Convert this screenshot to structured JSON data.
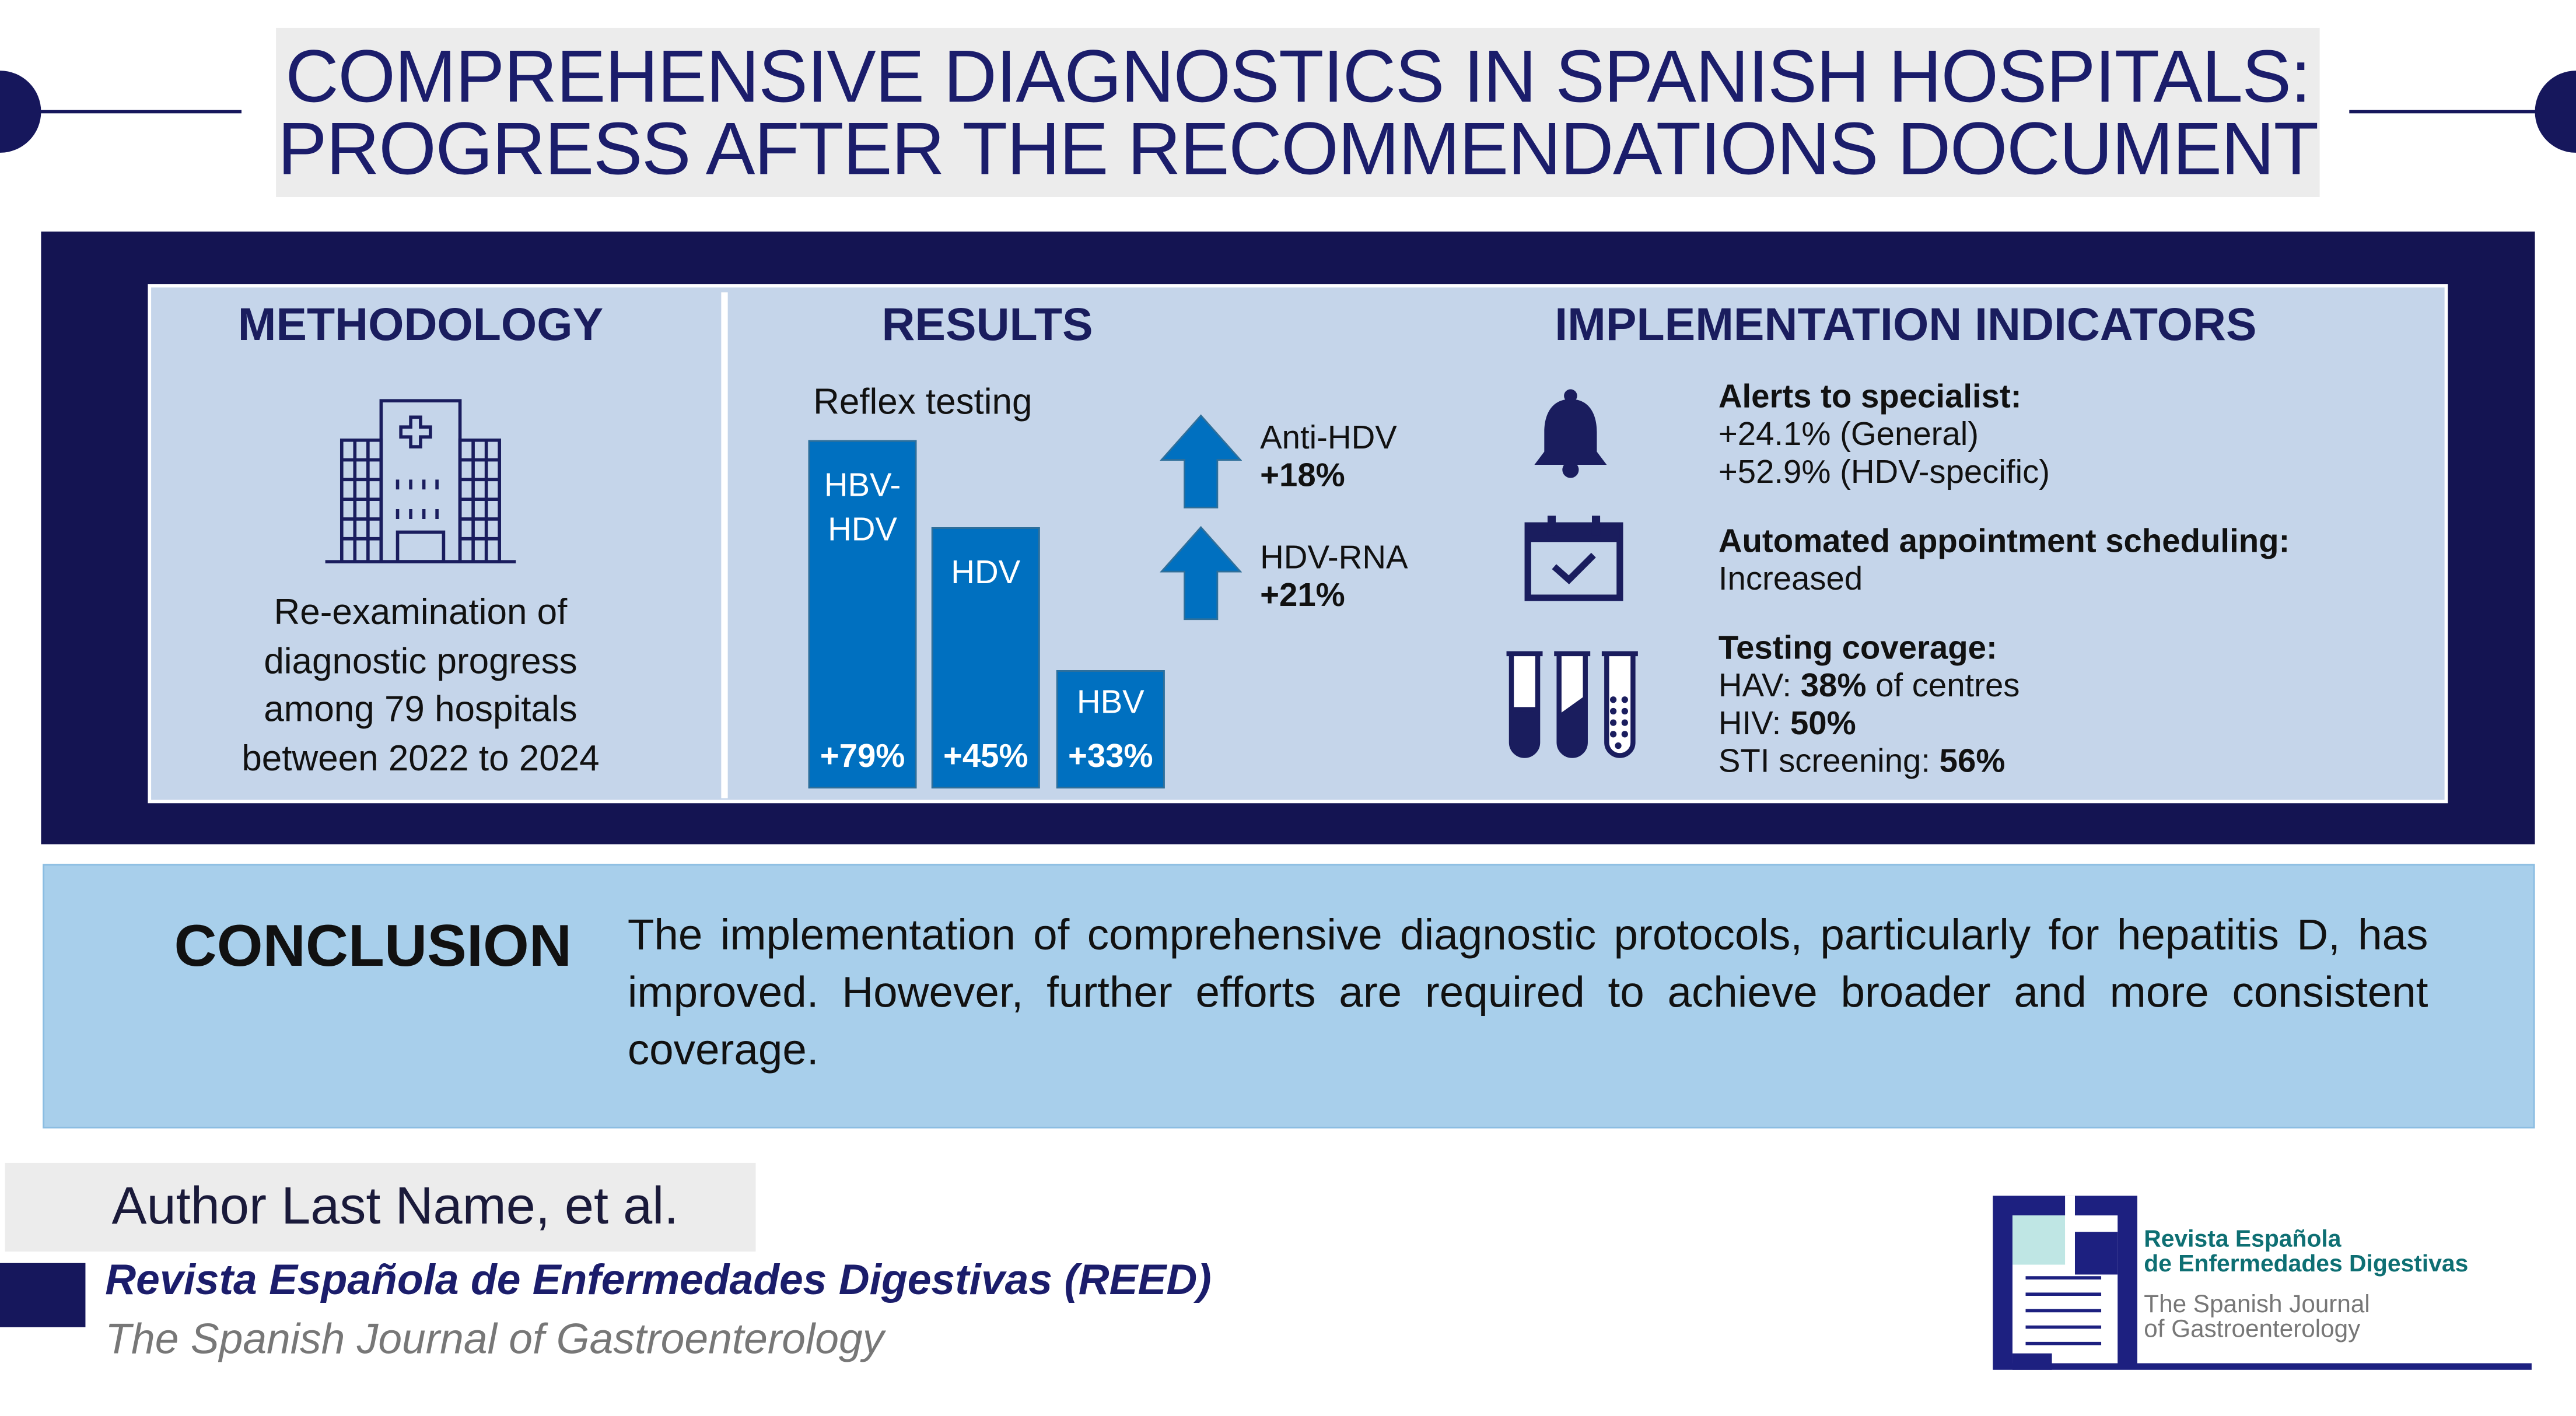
{
  "title": {
    "line1": "COMPREHENSIVE DIAGNOSTICS IN SPANISH HOSPITALS:",
    "line2": "PROGRESS AFTER THE RECOMMENDATIONS DOCUMENT"
  },
  "methodology": {
    "heading": "METHODOLOGY",
    "icon": "hospital-icon",
    "lines": [
      "Re-examination of",
      "diagnostic progress",
      "among 79 hospitals",
      "between 2022 to 2024"
    ]
  },
  "results": {
    "heading": "RESULTS",
    "reflex_label": "Reflex testing",
    "bars": [
      {
        "label1": "HBV-",
        "label2": "HDV",
        "value": "+79%"
      },
      {
        "label1": "HDV",
        "value": "+45%"
      },
      {
        "label1": "HBV",
        "value": "+33%"
      }
    ],
    "arrows": [
      {
        "label": "Anti-HDV",
        "value": "+18%"
      },
      {
        "label": "HDV-RNA",
        "value": "+21%"
      }
    ]
  },
  "chart_data": {
    "type": "bar",
    "title": "Reflex testing",
    "categories": [
      "HBV-HDV",
      "HDV",
      "HBV"
    ],
    "values": [
      79,
      45,
      33
    ],
    "unit": "%"
  },
  "indicators": {
    "heading": "IMPLEMENTATION INDICATORS",
    "alerts": {
      "title": "Alerts to specialist:",
      "lines": [
        "+24.1% (General)",
        "+52.9% (HDV-specific)"
      ]
    },
    "scheduling": {
      "title": "Automated appointment scheduling:",
      "value": "Increased"
    },
    "coverage": {
      "title": "Testing coverage:",
      "hav_label": "HAV: ",
      "hav_value": "38%",
      "hav_suffix": " of centres",
      "hiv_label": "HIV: ",
      "hiv_value": "50%",
      "sti_label": "STI screening: ",
      "sti_value": "56%"
    }
  },
  "conclusion": {
    "heading": "CONCLUSION",
    "text": "The implementation of comprehensive diagnostic protocols, particularly for hepatitis D, has improved. However, further efforts are required to achieve broader and more consistent coverage."
  },
  "footer": {
    "author": "Author Last Name, et al.",
    "journal": "Revista Española de Enfermedades Digestivas (REED)",
    "journal_en": "The Spanish Journal of Gastroenterology",
    "logo": {
      "line1": "Revista Española",
      "line2": "de Enfermedades Digestivas",
      "line3": "The Spanish Journal",
      "line4": "of Gastroenterology"
    }
  },
  "colors": {
    "navy": "#141452",
    "bar": "#0070c0",
    "panel": "#c5d5ea",
    "conclusion": "#a8cfeb"
  }
}
